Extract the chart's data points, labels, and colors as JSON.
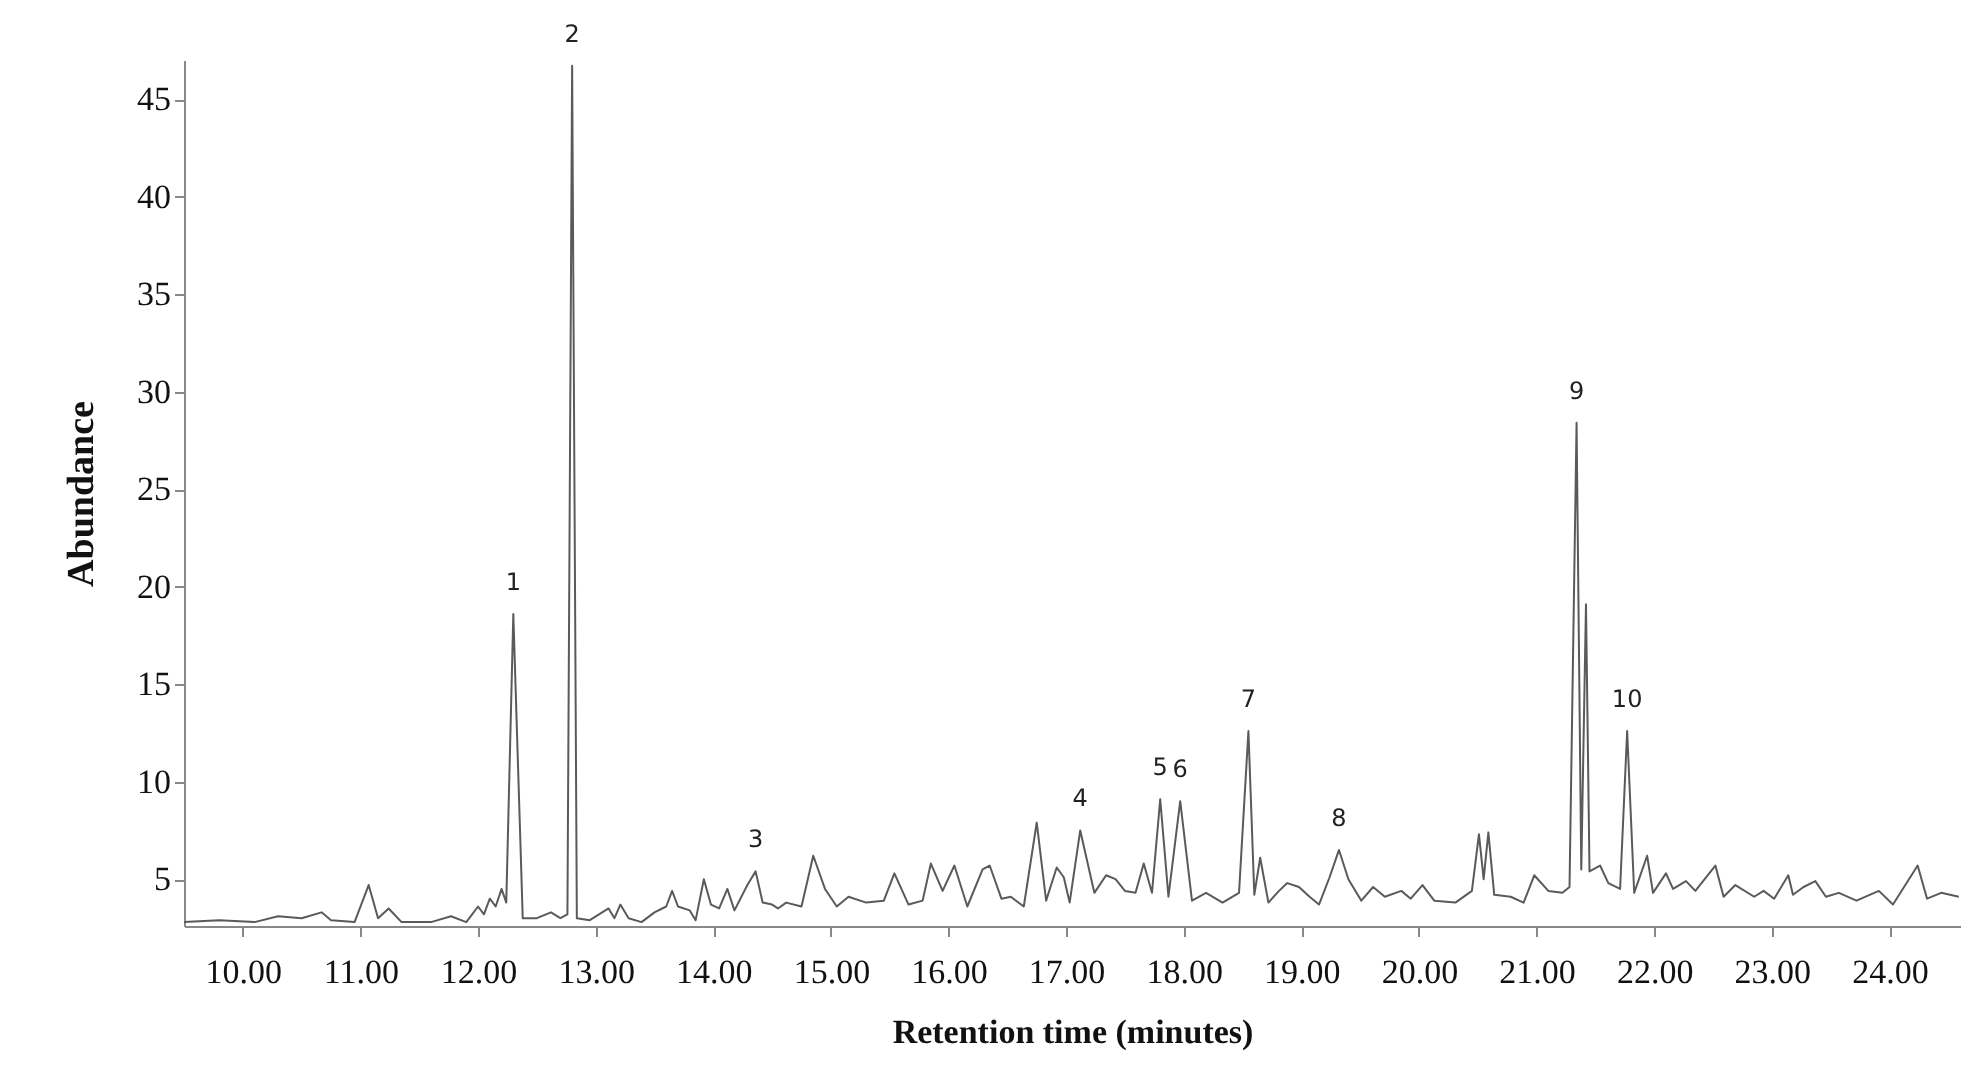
{
  "chart_data": {
    "type": "line",
    "xlabel": "Retention time (minutes)",
    "ylabel": "Abundance",
    "color": "#5a5a5a",
    "line_style": "solid",
    "marker": "none",
    "grid": false,
    "xlim": [
      9.5,
      24.6
    ],
    "ylim": [
      2.6,
      47
    ],
    "xticks": [
      {
        "value": 10,
        "label": "10.00"
      },
      {
        "value": 11,
        "label": "11.00"
      },
      {
        "value": 12,
        "label": "12.00"
      },
      {
        "value": 13,
        "label": "13.00"
      },
      {
        "value": 14,
        "label": "14.00"
      },
      {
        "value": 15,
        "label": "15.00"
      },
      {
        "value": 16,
        "label": "16.00"
      },
      {
        "value": 17,
        "label": "17.00"
      },
      {
        "value": 18,
        "label": "18.00"
      },
      {
        "value": 19,
        "label": "19.00"
      },
      {
        "value": 20,
        "label": "20.00"
      },
      {
        "value": 21,
        "label": "21.00"
      },
      {
        "value": 22,
        "label": "22.00"
      },
      {
        "value": 23,
        "label": "23.00"
      },
      {
        "value": 24,
        "label": "24.00"
      }
    ],
    "yticks": [
      5,
      10,
      15,
      20,
      25,
      30,
      35,
      40,
      45
    ],
    "x": [
      9.5,
      9.8,
      10.1,
      10.3,
      10.5,
      10.67,
      10.75,
      10.95,
      11.07,
      11.15,
      11.24,
      11.35,
      11.6,
      11.77,
      11.9,
      12.0,
      12.05,
      12.1,
      12.15,
      12.2,
      12.24,
      12.3,
      12.38,
      12.5,
      12.62,
      12.7,
      12.76,
      12.8,
      12.84,
      12.95,
      13.11,
      13.16,
      13.21,
      13.28,
      13.39,
      13.5,
      13.6,
      13.65,
      13.7,
      13.8,
      13.85,
      13.92,
      13.98,
      14.05,
      14.12,
      14.18,
      14.29,
      14.36,
      14.42,
      14.5,
      14.55,
      14.62,
      14.75,
      14.85,
      14.95,
      15.05,
      15.15,
      15.3,
      15.45,
      15.54,
      15.66,
      15.78,
      15.85,
      15.95,
      16.05,
      16.16,
      16.29,
      16.35,
      16.45,
      16.53,
      16.64,
      16.75,
      16.83,
      16.92,
      16.98,
      17.03,
      17.12,
      17.24,
      17.34,
      17.42,
      17.5,
      17.59,
      17.66,
      17.73,
      17.8,
      17.87,
      17.97,
      18.07,
      18.19,
      18.33,
      18.47,
      18.55,
      18.6,
      18.65,
      18.72,
      18.81,
      18.88,
      18.98,
      19.07,
      19.15,
      19.24,
      19.32,
      19.4,
      19.51,
      19.61,
      19.71,
      19.85,
      19.93,
      20.03,
      20.13,
      20.31,
      20.45,
      20.51,
      20.55,
      20.59,
      20.64,
      20.78,
      20.89,
      20.98,
      21.1,
      21.22,
      21.28,
      21.34,
      21.38,
      21.42,
      21.45,
      21.54,
      21.61,
      21.71,
      21.77,
      21.83,
      21.94,
      21.99,
      22.1,
      22.16,
      22.27,
      22.35,
      22.52,
      22.59,
      22.69,
      22.85,
      22.93,
      23.02,
      23.14,
      23.18,
      23.27,
      23.37,
      23.46,
      23.57,
      23.72,
      23.91,
      24.03,
      24.24,
      24.32,
      24.44,
      24.59
    ],
    "values": [
      2.8,
      2.9,
      2.8,
      3.1,
      3.0,
      3.3,
      2.9,
      2.8,
      4.7,
      3.0,
      3.5,
      2.8,
      2.8,
      3.1,
      2.8,
      3.6,
      3.2,
      4.0,
      3.6,
      4.5,
      3.8,
      18.6,
      3.0,
      3.0,
      3.3,
      3.0,
      3.2,
      46.7,
      3.0,
      2.9,
      3.5,
      3.0,
      3.7,
      3.0,
      2.8,
      3.3,
      3.6,
      4.4,
      3.6,
      3.4,
      2.9,
      5.0,
      3.7,
      3.5,
      4.5,
      3.4,
      4.7,
      5.4,
      3.8,
      3.7,
      3.5,
      3.8,
      3.6,
      6.2,
      4.5,
      3.6,
      4.1,
      3.8,
      3.9,
      5.3,
      3.7,
      3.9,
      5.8,
      4.4,
      5.7,
      3.6,
      5.5,
      5.7,
      4.0,
      4.1,
      3.6,
      7.9,
      3.9,
      5.6,
      5.1,
      3.8,
      7.5,
      4.3,
      5.2,
      5.0,
      4.4,
      4.3,
      5.8,
      4.3,
      9.1,
      4.1,
      9.0,
      3.9,
      4.3,
      3.8,
      4.3,
      12.6,
      4.2,
      6.1,
      3.8,
      4.4,
      4.8,
      4.6,
      4.1,
      3.7,
      5.1,
      6.5,
      5.0,
      3.9,
      4.6,
      4.1,
      4.4,
      4.0,
      4.7,
      3.9,
      3.8,
      4.4,
      7.3,
      5.0,
      7.4,
      4.2,
      4.1,
      3.8,
      5.2,
      4.4,
      4.3,
      4.6,
      28.4,
      5.5,
      19.1,
      5.4,
      5.7,
      4.8,
      4.5,
      12.6,
      4.3,
      6.2,
      4.3,
      5.3,
      4.5,
      4.9,
      4.4,
      5.7,
      4.1,
      4.7,
      4.1,
      4.4,
      4.0,
      5.2,
      4.2,
      4.6,
      4.9,
      4.1,
      4.3,
      3.9,
      4.4,
      3.7,
      5.7,
      4.0,
      4.3,
      4.1
    ],
    "annotations": [
      {
        "text": "1",
        "x": 12.3,
        "y": 18.6
      },
      {
        "text": "2",
        "x": 12.8,
        "y": 46.7
      },
      {
        "text": "3",
        "x": 14.36,
        "y": 5.4
      },
      {
        "text": "4",
        "x": 17.12,
        "y": 7.5
      },
      {
        "text": "5",
        "x": 17.8,
        "y": 9.1
      },
      {
        "text": "6",
        "x": 17.97,
        "y": 9.0
      },
      {
        "text": "7",
        "x": 18.55,
        "y": 12.6
      },
      {
        "text": "8",
        "x": 19.32,
        "y": 6.5
      },
      {
        "text": "9",
        "x": 21.34,
        "y": 28.4
      },
      {
        "text": "10",
        "x": 21.77,
        "y": 12.6
      }
    ]
  }
}
